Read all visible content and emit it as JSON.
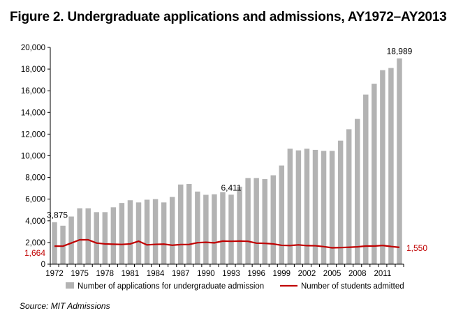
{
  "figure": {
    "title": "Figure 2. Undergraduate applications and admissions, AY1972–AY2013",
    "source": "Source: MIT Admissions"
  },
  "colors": {
    "bar": "#b3b3b3",
    "line": "#c00000",
    "axis": "#000000"
  },
  "chart_data": {
    "type": "bar",
    "x": [
      1972,
      1973,
      1974,
      1975,
      1976,
      1977,
      1978,
      1979,
      1980,
      1981,
      1982,
      1983,
      1984,
      1985,
      1986,
      1987,
      1988,
      1989,
      1990,
      1991,
      1992,
      1993,
      1994,
      1995,
      1996,
      1997,
      1998,
      1999,
      2000,
      2001,
      2002,
      2003,
      2004,
      2005,
      2006,
      2007,
      2008,
      2009,
      2010,
      2011,
      2012,
      2013
    ],
    "x_tick_labels": [
      "1972",
      "1975",
      "1978",
      "1981",
      "1984",
      "1987",
      "1990",
      "1993",
      "1996",
      "1999",
      "2002",
      "2005",
      "2008",
      "2011"
    ],
    "y_tick_labels": [
      "0",
      "2,000",
      "4,000",
      "6,000",
      "8,000",
      "10,000",
      "12,000",
      "14,000",
      "16,000",
      "18,000",
      "20,000"
    ],
    "ylim": [
      0,
      20000
    ],
    "grid": false,
    "legend_position": "bottom",
    "series": [
      {
        "name": "Number of applications for undergraduate admission",
        "type": "bar",
        "values": [
          3875,
          3550,
          4400,
          5150,
          5150,
          4800,
          4800,
          5250,
          5650,
          5900,
          5700,
          5950,
          6000,
          5700,
          6200,
          7350,
          7400,
          6700,
          6400,
          6450,
          6650,
          6411,
          7150,
          7950,
          7950,
          7850,
          8200,
          9100,
          10650,
          10500,
          10650,
          10550,
          10450,
          10450,
          11400,
          12450,
          13400,
          15650,
          16650,
          17900,
          18100,
          18989
        ]
      },
      {
        "name": "Number of students admitted",
        "type": "line",
        "values": [
          1664,
          1660,
          1950,
          2250,
          2250,
          1950,
          1870,
          1840,
          1820,
          1870,
          2120,
          1780,
          1830,
          1850,
          1750,
          1810,
          1820,
          1980,
          2020,
          1970,
          2130,
          2110,
          2130,
          2110,
          1940,
          1920,
          1870,
          1740,
          1720,
          1780,
          1710,
          1700,
          1620,
          1510,
          1530,
          1560,
          1600,
          1670,
          1670,
          1730,
          1630,
          1550
        ]
      }
    ],
    "annotations": [
      {
        "series": 0,
        "index": 0,
        "text": "3,875"
      },
      {
        "series": 0,
        "index": 21,
        "text": "6,411"
      },
      {
        "series": 0,
        "index": 41,
        "text": "18,989"
      },
      {
        "series": 1,
        "index": 0,
        "text": "1,664"
      },
      {
        "series": 1,
        "index": 41,
        "text": "1,550"
      }
    ]
  }
}
